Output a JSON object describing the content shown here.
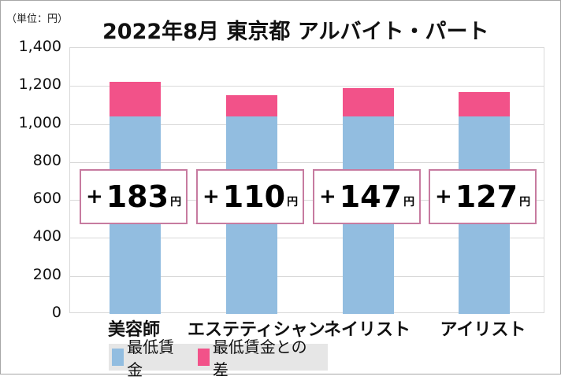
{
  "chart_data": {
    "type": "bar",
    "stacked": true,
    "title": "2022年8月 東京都 アルバイト・パート",
    "unit_label": "（単位：円）",
    "categories": [
      "美容師",
      "エステティシャン",
      "ネイリスト",
      "アイリスト"
    ],
    "series": [
      {
        "name": "最低賃金",
        "color": "#92bde0",
        "values": [
          1041,
          1041,
          1041,
          1041
        ]
      },
      {
        "name": "最低賃金との差",
        "color": "#f25289",
        "values": [
          183,
          110,
          147,
          127
        ]
      }
    ],
    "totals": [
      1224,
      1151,
      1188,
      1168
    ],
    "annotations": [
      "+183円",
      "+110円",
      "+147円",
      "+127円"
    ],
    "yticks": [
      "0",
      "200",
      "400",
      "600",
      "800",
      "1,000",
      "1,200",
      "1,400"
    ],
    "ylim": [
      0,
      1400
    ],
    "xlabel": "",
    "ylabel": "",
    "grid": true,
    "legend_position": "bottom"
  },
  "labels": [
    {
      "plus": "+",
      "num": "183",
      "yen": "円"
    },
    {
      "plus": "+",
      "num": "110",
      "yen": "円"
    },
    {
      "plus": "+",
      "num": "147",
      "yen": "円"
    },
    {
      "plus": "+",
      "num": "127",
      "yen": "円"
    }
  ]
}
